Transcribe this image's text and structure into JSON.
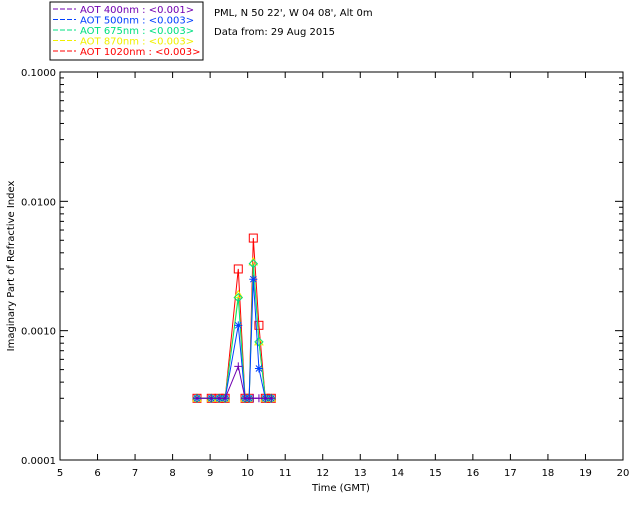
{
  "header": {
    "location": "PML, N 50 22', W 04 08', Alt 0m",
    "date": "Data from: 29 Aug 2015"
  },
  "chart_data": {
    "type": "line",
    "title": "",
    "xlabel": "Time (GMT)",
    "ylabel": "Imaginary Part of Refractive Index",
    "xlim": [
      5,
      20
    ],
    "ylim": [
      0.0001,
      0.1
    ],
    "yscale": "log",
    "xticks": [
      "5",
      "6",
      "7",
      "8",
      "9",
      "10",
      "11",
      "12",
      "13",
      "14",
      "15",
      "16",
      "17",
      "18",
      "19",
      "20"
    ],
    "yticks": [
      "0.0001",
      "0.0010",
      "0.0100",
      "0.1000"
    ],
    "legend_position": "top-left",
    "x": [
      8.65,
      9.03,
      9.24,
      9.4,
      9.75,
      9.93,
      10.04,
      10.15,
      10.3,
      10.47,
      10.63
    ],
    "series": [
      {
        "name": "AOT  400nm : <0.001>",
        "color": "#7000b0",
        "marker": "plus",
        "values": [
          0.0003,
          0.0003,
          0.0003,
          0.0003,
          0.00053,
          0.0003,
          0.0003,
          0.0003,
          0.0003,
          0.0003,
          0.0003
        ]
      },
      {
        "name": "AOT  500nm : <0.003>",
        "color": "#0040ff",
        "marker": "star",
        "values": [
          0.0003,
          0.0003,
          0.0003,
          0.0003,
          0.0011,
          0.0003,
          0.0003,
          0.0025,
          0.00051,
          0.0003,
          0.0003
        ]
      },
      {
        "name": "AOT  675nm : <0.003>",
        "color": "#00e080",
        "marker": "diamond",
        "values": [
          0.0003,
          0.0003,
          0.0003,
          0.0003,
          0.0018,
          0.0003,
          0.0003,
          0.0033,
          0.00082,
          0.0003,
          0.0003
        ]
      },
      {
        "name": "AOT  870nm : <0.003>",
        "color": "#f0f000",
        "marker": "triangle",
        "values": [
          0.0003,
          0.0003,
          0.0003,
          0.0003,
          0.0019,
          0.0003,
          0.0003,
          0.0034,
          0.00082,
          0.0003,
          0.0003
        ]
      },
      {
        "name": "AOT 1020nm : <0.003>",
        "color": "#ff0000",
        "marker": "square",
        "values": [
          0.0003,
          0.0003,
          0.0003,
          0.0003,
          0.003,
          0.0003,
          0.0003,
          0.0052,
          0.0011,
          0.0003,
          0.0003
        ]
      }
    ]
  }
}
